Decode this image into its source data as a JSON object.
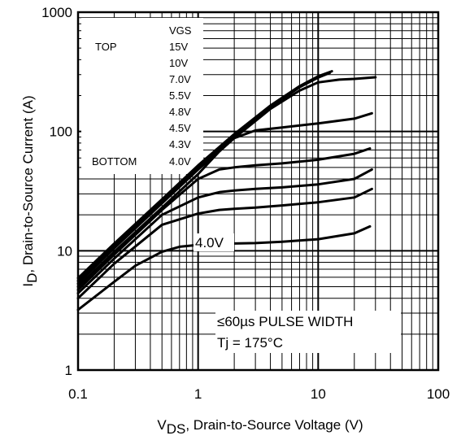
{
  "chart_data": {
    "type": "line",
    "xscale": "log",
    "yscale": "log",
    "xlim": [
      0.1,
      100
    ],
    "ylim": [
      1,
      1000
    ],
    "grid": true,
    "xlabel": {
      "main": "V",
      "sub": "DS",
      "rest": ", Drain-to-Source Voltage (V)"
    },
    "ylabel": {
      "main": "I",
      "sub": "D",
      "rest": ", Drain-to-Source Current (A)"
    },
    "x_ticks": [
      {
        "value": 0.1,
        "label": "0.1"
      },
      {
        "value": 1,
        "label": "1"
      },
      {
        "value": 10,
        "label": "10"
      },
      {
        "value": 100,
        "label": "100"
      }
    ],
    "y_ticks": [
      {
        "value": 1,
        "label": "1"
      },
      {
        "value": 10,
        "label": "10"
      },
      {
        "value": 100,
        "label": "100"
      },
      {
        "value": 1000,
        "label": "1000"
      }
    ],
    "legend": {
      "header": "VGS",
      "top_label": "TOP",
      "bottom_label": "BOTTOM",
      "entries": [
        "15V",
        "10V",
        "7.0V",
        "5.5V",
        "4.8V",
        "4.5V",
        "4.3V",
        "4.0V"
      ]
    },
    "annotations": {
      "curve_label": "4.0V",
      "pulse": "≤60µs PULSE WIDTH",
      "temperature": "Tj = 175°C"
    },
    "series": [
      {
        "name": "15V",
        "x": [
          0.1,
          0.2,
          0.5,
          1,
          2,
          4,
          7,
          10,
          13
        ],
        "y": [
          5.9,
          11.5,
          27,
          52,
          95,
          165,
          240,
          290,
          320
        ]
      },
      {
        "name": "10V",
        "x": [
          0.1,
          0.2,
          0.5,
          1,
          2,
          4,
          7,
          10,
          12.5
        ],
        "y": [
          5.6,
          11,
          26,
          50,
          92,
          160,
          235,
          283,
          310
        ]
      },
      {
        "name": "7.0V",
        "x": [
          0.1,
          0.2,
          0.5,
          1,
          2,
          4,
          7,
          10,
          15,
          20,
          30
        ],
        "y": [
          5.3,
          10.5,
          25,
          48,
          88,
          155,
          220,
          258,
          272,
          276,
          285
        ]
      },
      {
        "name": "5.5V",
        "x": [
          0.1,
          0.2,
          0.5,
          1,
          1.5,
          2,
          3,
          5,
          10,
          20,
          28
        ],
        "y": [
          5.0,
          9.8,
          23,
          44,
          68,
          88,
          102,
          108,
          117,
          128,
          142
        ]
      },
      {
        "name": "4.8V",
        "x": [
          0.1,
          0.2,
          0.5,
          1,
          1.5,
          2,
          3,
          5,
          10,
          20,
          27
        ],
        "y": [
          4.7,
          9.3,
          22,
          40,
          48,
          50,
          52,
          54,
          58,
          65,
          72
        ]
      },
      {
        "name": "4.5V",
        "x": [
          0.1,
          0.2,
          0.5,
          1,
          1.5,
          2,
          3,
          5,
          10,
          20,
          28
        ],
        "y": [
          4.4,
          8.6,
          20,
          28,
          31,
          32,
          33,
          34,
          36,
          40,
          48
        ]
      },
      {
        "name": "4.3V",
        "x": [
          0.1,
          0.2,
          0.5,
          1,
          1.5,
          2,
          3,
          5,
          10,
          20,
          28
        ],
        "y": [
          4.0,
          7.8,
          16.5,
          20.5,
          22,
          22.5,
          23,
          24,
          25.5,
          28,
          33
        ]
      },
      {
        "name": "4.0V",
        "x": [
          0.1,
          0.2,
          0.3,
          0.5,
          0.7,
          1,
          2,
          3,
          5,
          10,
          20,
          27
        ],
        "y": [
          3.2,
          5.5,
          7.5,
          9.8,
          10.8,
          11.2,
          11.5,
          11.6,
          11.9,
          12.5,
          14,
          16
        ]
      }
    ]
  }
}
